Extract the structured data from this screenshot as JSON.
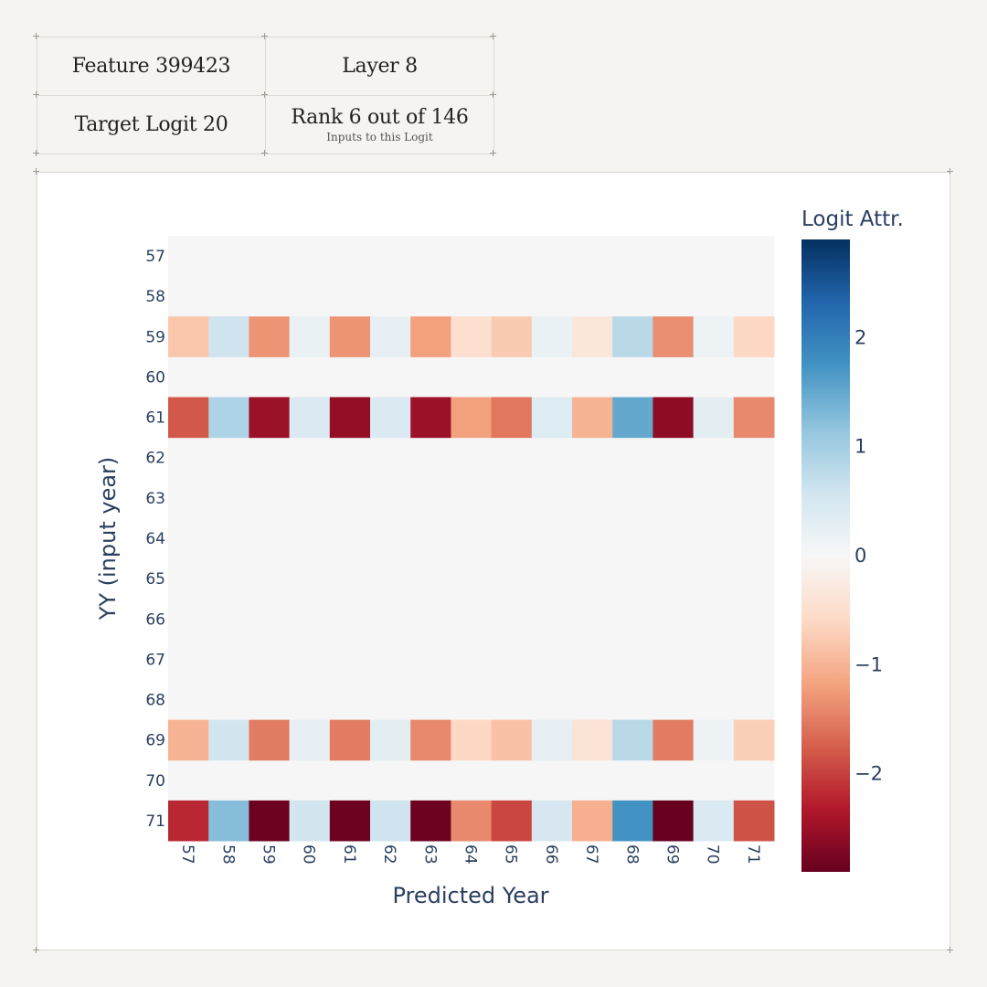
{
  "info": {
    "feature": "Feature 399423",
    "layer": "Layer 8",
    "target_logit": "Target Logit 20",
    "rank": "Rank 6 out of 146",
    "rank_sub": "Inputs to this Logit"
  },
  "chart_data": {
    "type": "heatmap",
    "xlabel": "Predicted Year",
    "ylabel": "YY (input year)",
    "colorbar_title": "Logit Attr.",
    "colorscale": "RdBu",
    "zmin": -2.9,
    "zmax": 2.9,
    "colorbar_ticks": [
      2,
      1,
      0,
      -1,
      -2
    ],
    "x": [
      "57",
      "58",
      "59",
      "60",
      "61",
      "62",
      "63",
      "64",
      "65",
      "66",
      "67",
      "68",
      "69",
      "70",
      "71"
    ],
    "y": [
      "57",
      "58",
      "59",
      "60",
      "61",
      "62",
      "63",
      "64",
      "65",
      "66",
      "67",
      "68",
      "69",
      "70",
      "71"
    ],
    "z": [
      [
        null,
        null,
        null,
        null,
        null,
        null,
        null,
        null,
        null,
        null,
        null,
        null,
        null,
        null,
        null
      ],
      [
        null,
        null,
        null,
        null,
        null,
        null,
        null,
        null,
        null,
        null,
        null,
        null,
        null,
        null,
        null
      ],
      [
        -0.8,
        0.6,
        -1.3,
        0.2,
        -1.3,
        0.25,
        -1.2,
        -0.5,
        -0.75,
        0.2,
        -0.35,
        0.8,
        -1.35,
        0.15,
        -0.6
      ],
      [
        null,
        null,
        null,
        null,
        null,
        null,
        null,
        null,
        null,
        null,
        null,
        null,
        null,
        null,
        null
      ],
      [
        -1.8,
        0.9,
        -2.5,
        0.45,
        -2.55,
        0.45,
        -2.5,
        -1.2,
        -1.55,
        0.4,
        -1.0,
        1.5,
        -2.6,
        0.3,
        -1.4
      ],
      [
        null,
        null,
        null,
        null,
        null,
        null,
        null,
        null,
        null,
        null,
        null,
        null,
        null,
        null,
        null
      ],
      [
        null,
        null,
        null,
        null,
        null,
        null,
        null,
        null,
        null,
        null,
        null,
        null,
        null,
        null,
        null
      ],
      [
        null,
        null,
        null,
        null,
        null,
        null,
        null,
        null,
        null,
        null,
        null,
        null,
        null,
        null,
        null
      ],
      [
        null,
        null,
        null,
        null,
        null,
        null,
        null,
        null,
        null,
        null,
        null,
        null,
        null,
        null,
        null
      ],
      [
        null,
        null,
        null,
        null,
        null,
        null,
        null,
        null,
        null,
        null,
        null,
        null,
        null,
        null,
        null
      ],
      [
        null,
        null,
        null,
        null,
        null,
        null,
        null,
        null,
        null,
        null,
        null,
        null,
        null,
        null,
        null
      ],
      [
        null,
        null,
        null,
        null,
        null,
        null,
        null,
        null,
        null,
        null,
        null,
        null,
        null,
        null,
        null
      ],
      [
        -1.0,
        0.55,
        -1.5,
        0.25,
        -1.5,
        0.3,
        -1.4,
        -0.6,
        -0.85,
        0.25,
        -0.4,
        0.8,
        -1.5,
        0.15,
        -0.7
      ],
      [
        null,
        null,
        null,
        null,
        null,
        null,
        null,
        null,
        null,
        null,
        null,
        null,
        null,
        null,
        null
      ],
      [
        -2.2,
        1.25,
        -2.85,
        0.55,
        -2.85,
        0.6,
        -2.85,
        -1.4,
        -1.95,
        0.5,
        -1.05,
        1.75,
        -2.9,
        0.45,
        -1.85
      ]
    ]
  }
}
